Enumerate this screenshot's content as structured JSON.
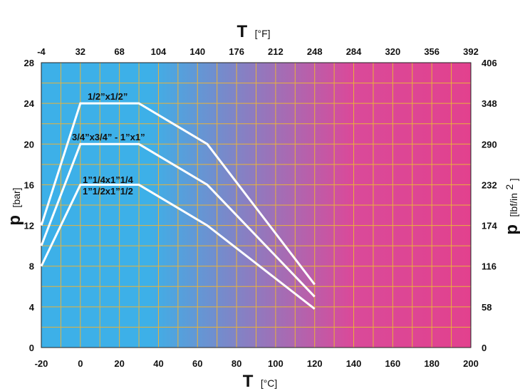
{
  "chart_data": {
    "type": "line",
    "top_axis": {
      "symbol": "T",
      "unit": "[°F]",
      "ticks": [
        "-4",
        "32",
        "68",
        "104",
        "140",
        "176",
        "212",
        "248",
        "284",
        "320",
        "356",
        "392"
      ]
    },
    "bottom_axis": {
      "symbol": "T",
      "unit": "[°C]",
      "range": [
        -20,
        200
      ],
      "ticks": [
        "-20",
        "0",
        "20",
        "40",
        "60",
        "80",
        "100",
        "120",
        "140",
        "160",
        "180",
        "200"
      ]
    },
    "left_axis": {
      "symbol": "p",
      "unit": "[bar]",
      "range": [
        0,
        28
      ],
      "ticks": [
        "0",
        "4",
        "8",
        "12",
        "16",
        "20",
        "24",
        "28"
      ]
    },
    "right_axis": {
      "symbol": "p",
      "unit_main": "[lbf/in",
      "unit_sup": "2",
      "unit_end": "]",
      "ticks": [
        "0",
        "58",
        "116",
        "174",
        "232",
        "290",
        "348",
        "406"
      ]
    },
    "grid": true,
    "gradient_colors": {
      "start": "#3DB0E8",
      "end": "#E2418E"
    },
    "grid_color": "#E8B23A",
    "line_color": "#FFFFFF",
    "series": [
      {
        "labels": [
          "1/2”x1/2”"
        ],
        "points": [
          [
            -20,
            12
          ],
          [
            0,
            24
          ],
          [
            30,
            24
          ],
          [
            65,
            20
          ],
          [
            120,
            6.2
          ]
        ]
      },
      {
        "labels": [
          "3/4”x3/4”  -  1”x1”"
        ],
        "points": [
          [
            -20,
            10
          ],
          [
            0,
            20
          ],
          [
            30,
            20
          ],
          [
            65,
            16
          ],
          [
            120,
            5
          ]
        ]
      },
      {
        "labels": [
          "1”1/4x1”1/4",
          "1”1/2x1”1/2"
        ],
        "points": [
          [
            -20,
            8
          ],
          [
            0,
            16
          ],
          [
            30,
            16
          ],
          [
            65,
            12
          ],
          [
            120,
            3.8
          ]
        ]
      }
    ]
  }
}
